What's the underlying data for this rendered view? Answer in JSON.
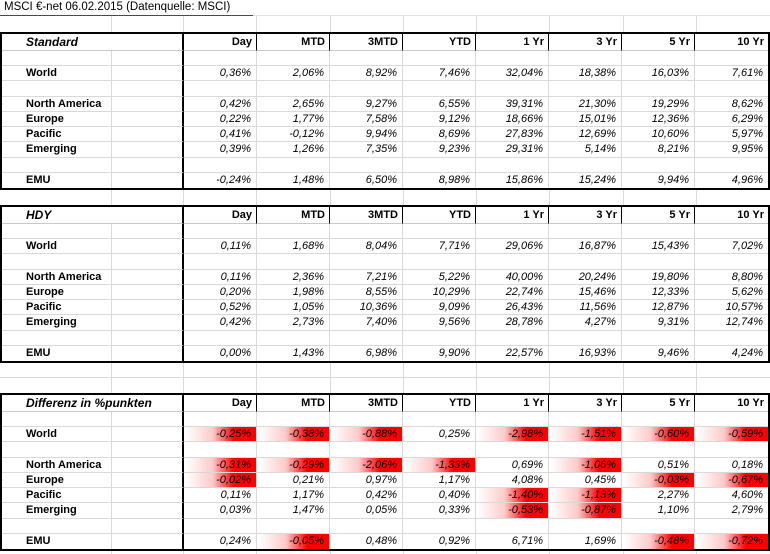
{
  "title": "MSCI €-net 06.02.2015 (Datenquelle: MSCI)",
  "columns": [
    "Day",
    "MTD",
    "3MTD",
    "YTD",
    "1 Yr",
    "3 Yr",
    "5 Yr",
    "10 Yr"
  ],
  "colors": {
    "negative_highlight": "#ff0000",
    "gridline": "#d9d9d9",
    "border": "#000000"
  },
  "sections": [
    {
      "name": "Standard",
      "highlight_negative": false,
      "rows": [
        {
          "label": "World",
          "values": [
            "0,36%",
            "2,06%",
            "8,92%",
            "7,46%",
            "32,04%",
            "18,38%",
            "16,03%",
            "7,61%"
          ]
        },
        {
          "label": "North America",
          "values": [
            "0,42%",
            "2,65%",
            "9,27%",
            "6,55%",
            "39,31%",
            "21,30%",
            "19,29%",
            "8,62%"
          ]
        },
        {
          "label": "Europe",
          "values": [
            "0,22%",
            "1,77%",
            "7,58%",
            "9,12%",
            "18,66%",
            "15,01%",
            "12,36%",
            "6,29%"
          ]
        },
        {
          "label": "Pacific",
          "values": [
            "0,41%",
            "-0,12%",
            "9,94%",
            "8,69%",
            "27,83%",
            "12,69%",
            "10,60%",
            "5,97%"
          ]
        },
        {
          "label": "Emerging",
          "values": [
            "0,39%",
            "1,26%",
            "7,35%",
            "9,23%",
            "29,31%",
            "5,14%",
            "8,21%",
            "9,95%"
          ]
        },
        {
          "label": "EMU",
          "values": [
            "-0,24%",
            "1,48%",
            "6,50%",
            "8,98%",
            "15,86%",
            "15,24%",
            "9,94%",
            "4,96%"
          ]
        }
      ]
    },
    {
      "name": "HDY",
      "highlight_negative": false,
      "rows": [
        {
          "label": "World",
          "values": [
            "0,11%",
            "1,68%",
            "8,04%",
            "7,71%",
            "29,06%",
            "16,87%",
            "15,43%",
            "7,02%"
          ]
        },
        {
          "label": "North America",
          "values": [
            "0,11%",
            "2,36%",
            "7,21%",
            "5,22%",
            "40,00%",
            "20,24%",
            "19,80%",
            "8,80%"
          ]
        },
        {
          "label": "Europe",
          "values": [
            "0,20%",
            "1,98%",
            "8,55%",
            "10,29%",
            "22,74%",
            "15,46%",
            "12,33%",
            "5,62%"
          ]
        },
        {
          "label": "Pacific",
          "values": [
            "0,52%",
            "1,05%",
            "10,36%",
            "9,09%",
            "26,43%",
            "11,56%",
            "12,87%",
            "10,57%"
          ]
        },
        {
          "label": "Emerging",
          "values": [
            "0,42%",
            "2,73%",
            "7,40%",
            "9,56%",
            "28,78%",
            "4,27%",
            "9,31%",
            "12,74%"
          ]
        },
        {
          "label": "EMU",
          "values": [
            "0,00%",
            "1,43%",
            "6,98%",
            "9,90%",
            "22,57%",
            "16,93%",
            "9,46%",
            "4,24%"
          ]
        }
      ]
    },
    {
      "name": "Differenz in %punkten",
      "highlight_negative": true,
      "rows": [
        {
          "label": "World",
          "values": [
            "-0,25%",
            "-0,38%",
            "-0,88%",
            "0,25%",
            "-2,98%",
            "-1,51%",
            "-0,60%",
            "-0,59%"
          ]
        },
        {
          "label": "North America",
          "values": [
            "-0,31%",
            "-0,29%",
            "-2,06%",
            "-1,33%",
            "0,69%",
            "-1,06%",
            "0,51%",
            "0,18%"
          ]
        },
        {
          "label": "Europe",
          "values": [
            "-0,02%",
            "0,21%",
            "0,97%",
            "1,17%",
            "4,08%",
            "0,45%",
            "-0,03%",
            "-0,67%"
          ]
        },
        {
          "label": "Pacific",
          "values": [
            "0,11%",
            "1,17%",
            "0,42%",
            "0,40%",
            "-1,40%",
            "-1,13%",
            "2,27%",
            "4,60%"
          ]
        },
        {
          "label": "Emerging",
          "values": [
            "0,03%",
            "1,47%",
            "0,05%",
            "0,33%",
            "-0,53%",
            "-0,87%",
            "1,10%",
            "2,79%"
          ]
        },
        {
          "label": "EMU",
          "values": [
            "0,24%",
            "-0,05%",
            "0,48%",
            "0,92%",
            "6,71%",
            "1,69%",
            "-0,48%",
            "-0,72%"
          ]
        }
      ]
    }
  ]
}
